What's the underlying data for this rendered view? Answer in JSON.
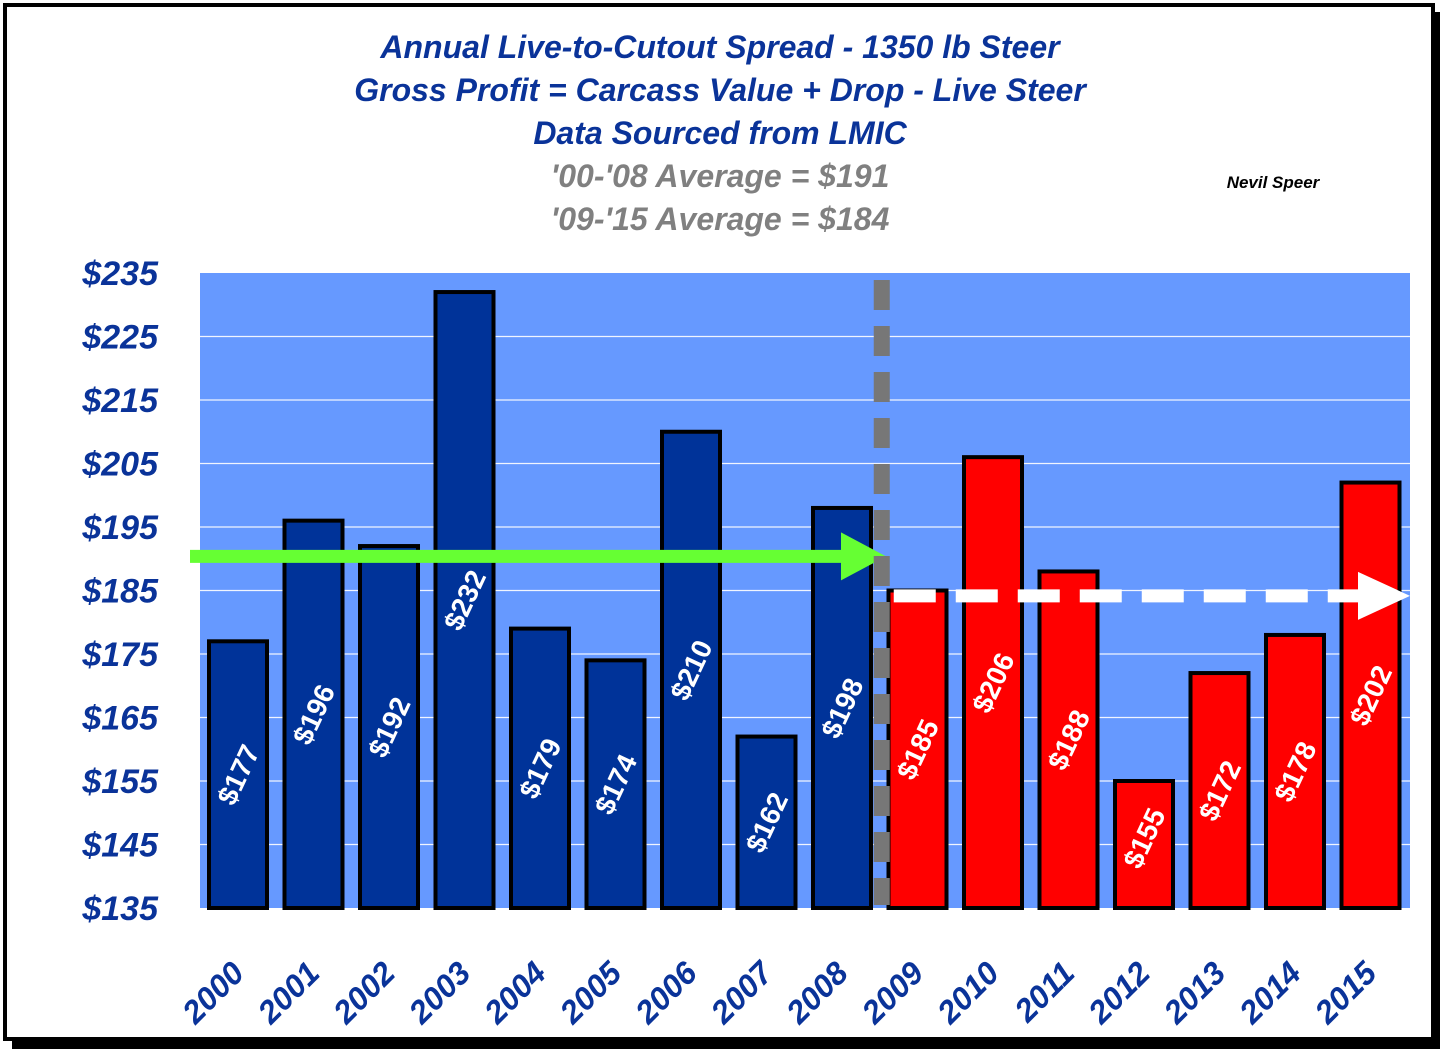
{
  "title_lines": [
    "Annual Live-to-Cutout Spread - 1350 lb Steer",
    "Gross Profit = Carcass Value + Drop - Live Steer",
    "Data Sourced from LMIC"
  ],
  "average_lines": [
    "'00-'08 Average = $191",
    "'09-'15 Average = $184"
  ],
  "author": "Nevil Speer",
  "colors": {
    "title": "#0a3399",
    "average": "#808080",
    "plot_bg": "#6699ff",
    "bar_blue": "#003399",
    "bar_red": "#ff0000",
    "arrow_green": "#66ff33",
    "divider": "#777777",
    "arrow_white": "#ffffff"
  },
  "chart_data": {
    "type": "bar",
    "categories": [
      "2000",
      "2001",
      "2002",
      "2003",
      "2004",
      "2005",
      "2006",
      "2007",
      "2008",
      "2009",
      "2010",
      "2011",
      "2012",
      "2013",
      "2014",
      "2015"
    ],
    "values": [
      177,
      196,
      192,
      232,
      179,
      174,
      210,
      162,
      198,
      185,
      206,
      188,
      155,
      172,
      178,
      202
    ],
    "data_labels": [
      "$177",
      "$196",
      "$192",
      "$232",
      "$179",
      "$174",
      "$210",
      "$162",
      "$198",
      "$185",
      "$206",
      "$188",
      "$155",
      "$172",
      "$178",
      "$202"
    ],
    "series_colors": [
      "blue",
      "blue",
      "blue",
      "blue",
      "blue",
      "blue",
      "blue",
      "blue",
      "blue",
      "red",
      "red",
      "red",
      "red",
      "red",
      "red",
      "red"
    ],
    "ylim": [
      135,
      235
    ],
    "yticks": [
      135,
      145,
      155,
      165,
      175,
      185,
      195,
      205,
      215,
      225,
      235
    ],
    "ytick_labels": [
      "$135",
      "$145",
      "$155",
      "$165",
      "$175",
      "$185",
      "$195",
      "$205",
      "$215",
      "$225",
      "$235"
    ],
    "grid": true,
    "averages": [
      {
        "period": "2000-2008",
        "value": 191
      },
      {
        "period": "2009-2015",
        "value": 184
      }
    ],
    "divider_between": [
      "2008",
      "2009"
    ]
  }
}
